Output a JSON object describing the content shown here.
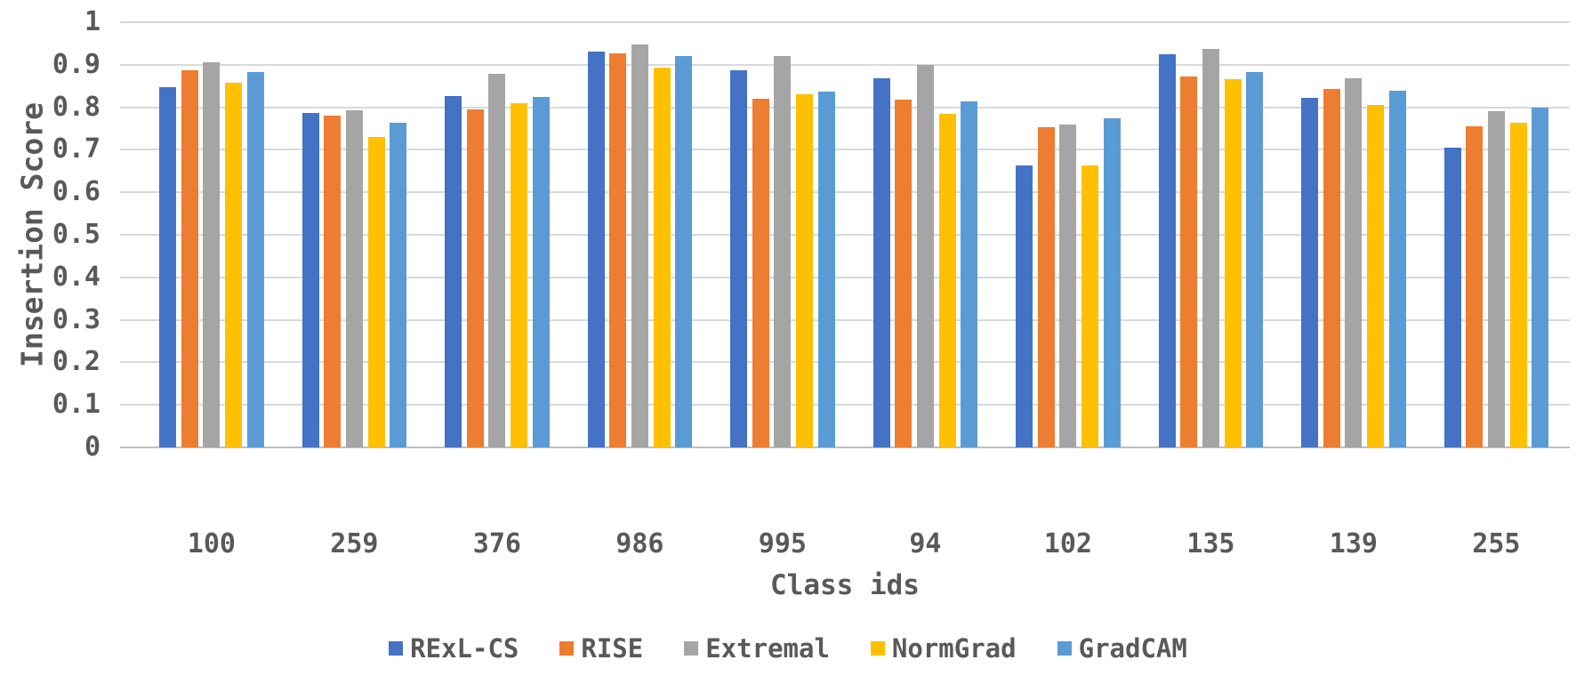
{
  "chart_data": {
    "type": "bar",
    "title": "",
    "xlabel": "Class ids",
    "ylabel": "Insertion Score",
    "categories": [
      "100",
      "259",
      "376",
      "986",
      "995",
      "94",
      "102",
      "135",
      "139",
      "255"
    ],
    "series": [
      {
        "name": "RExL-CS",
        "color": "#4472C4",
        "values": [
          0.848,
          0.786,
          0.827,
          0.932,
          0.886,
          0.869,
          0.664,
          0.925,
          0.822,
          0.705
        ]
      },
      {
        "name": "RISE",
        "color": "#ED7D31",
        "values": [
          0.888,
          0.78,
          0.796,
          0.927,
          0.82,
          0.817,
          0.753,
          0.873,
          0.843,
          0.755
        ]
      },
      {
        "name": "Extremal",
        "color": "#A5A5A5",
        "values": [
          0.906,
          0.792,
          0.878,
          0.947,
          0.92,
          0.899,
          0.759,
          0.938,
          0.868,
          0.791
        ]
      },
      {
        "name": "NormGrad",
        "color": "#FFC000",
        "values": [
          0.857,
          0.731,
          0.81,
          0.893,
          0.831,
          0.785,
          0.663,
          0.866,
          0.805,
          0.764
        ]
      },
      {
        "name": "GradCAM",
        "color": "#5B9BD5",
        "values": [
          0.883,
          0.764,
          0.825,
          0.921,
          0.836,
          0.813,
          0.774,
          0.882,
          0.838,
          0.799
        ]
      }
    ],
    "ylim": [
      0,
      1
    ],
    "yticks": [
      "0",
      "0.1",
      "0.2",
      "0.3",
      "0.4",
      "0.5",
      "0.6",
      "0.7",
      "0.8",
      "0.9",
      "1"
    ],
    "grid": true,
    "legend_position": "bottom",
    "text_color": "#595959",
    "gridline_color": "#D9D9D9"
  }
}
